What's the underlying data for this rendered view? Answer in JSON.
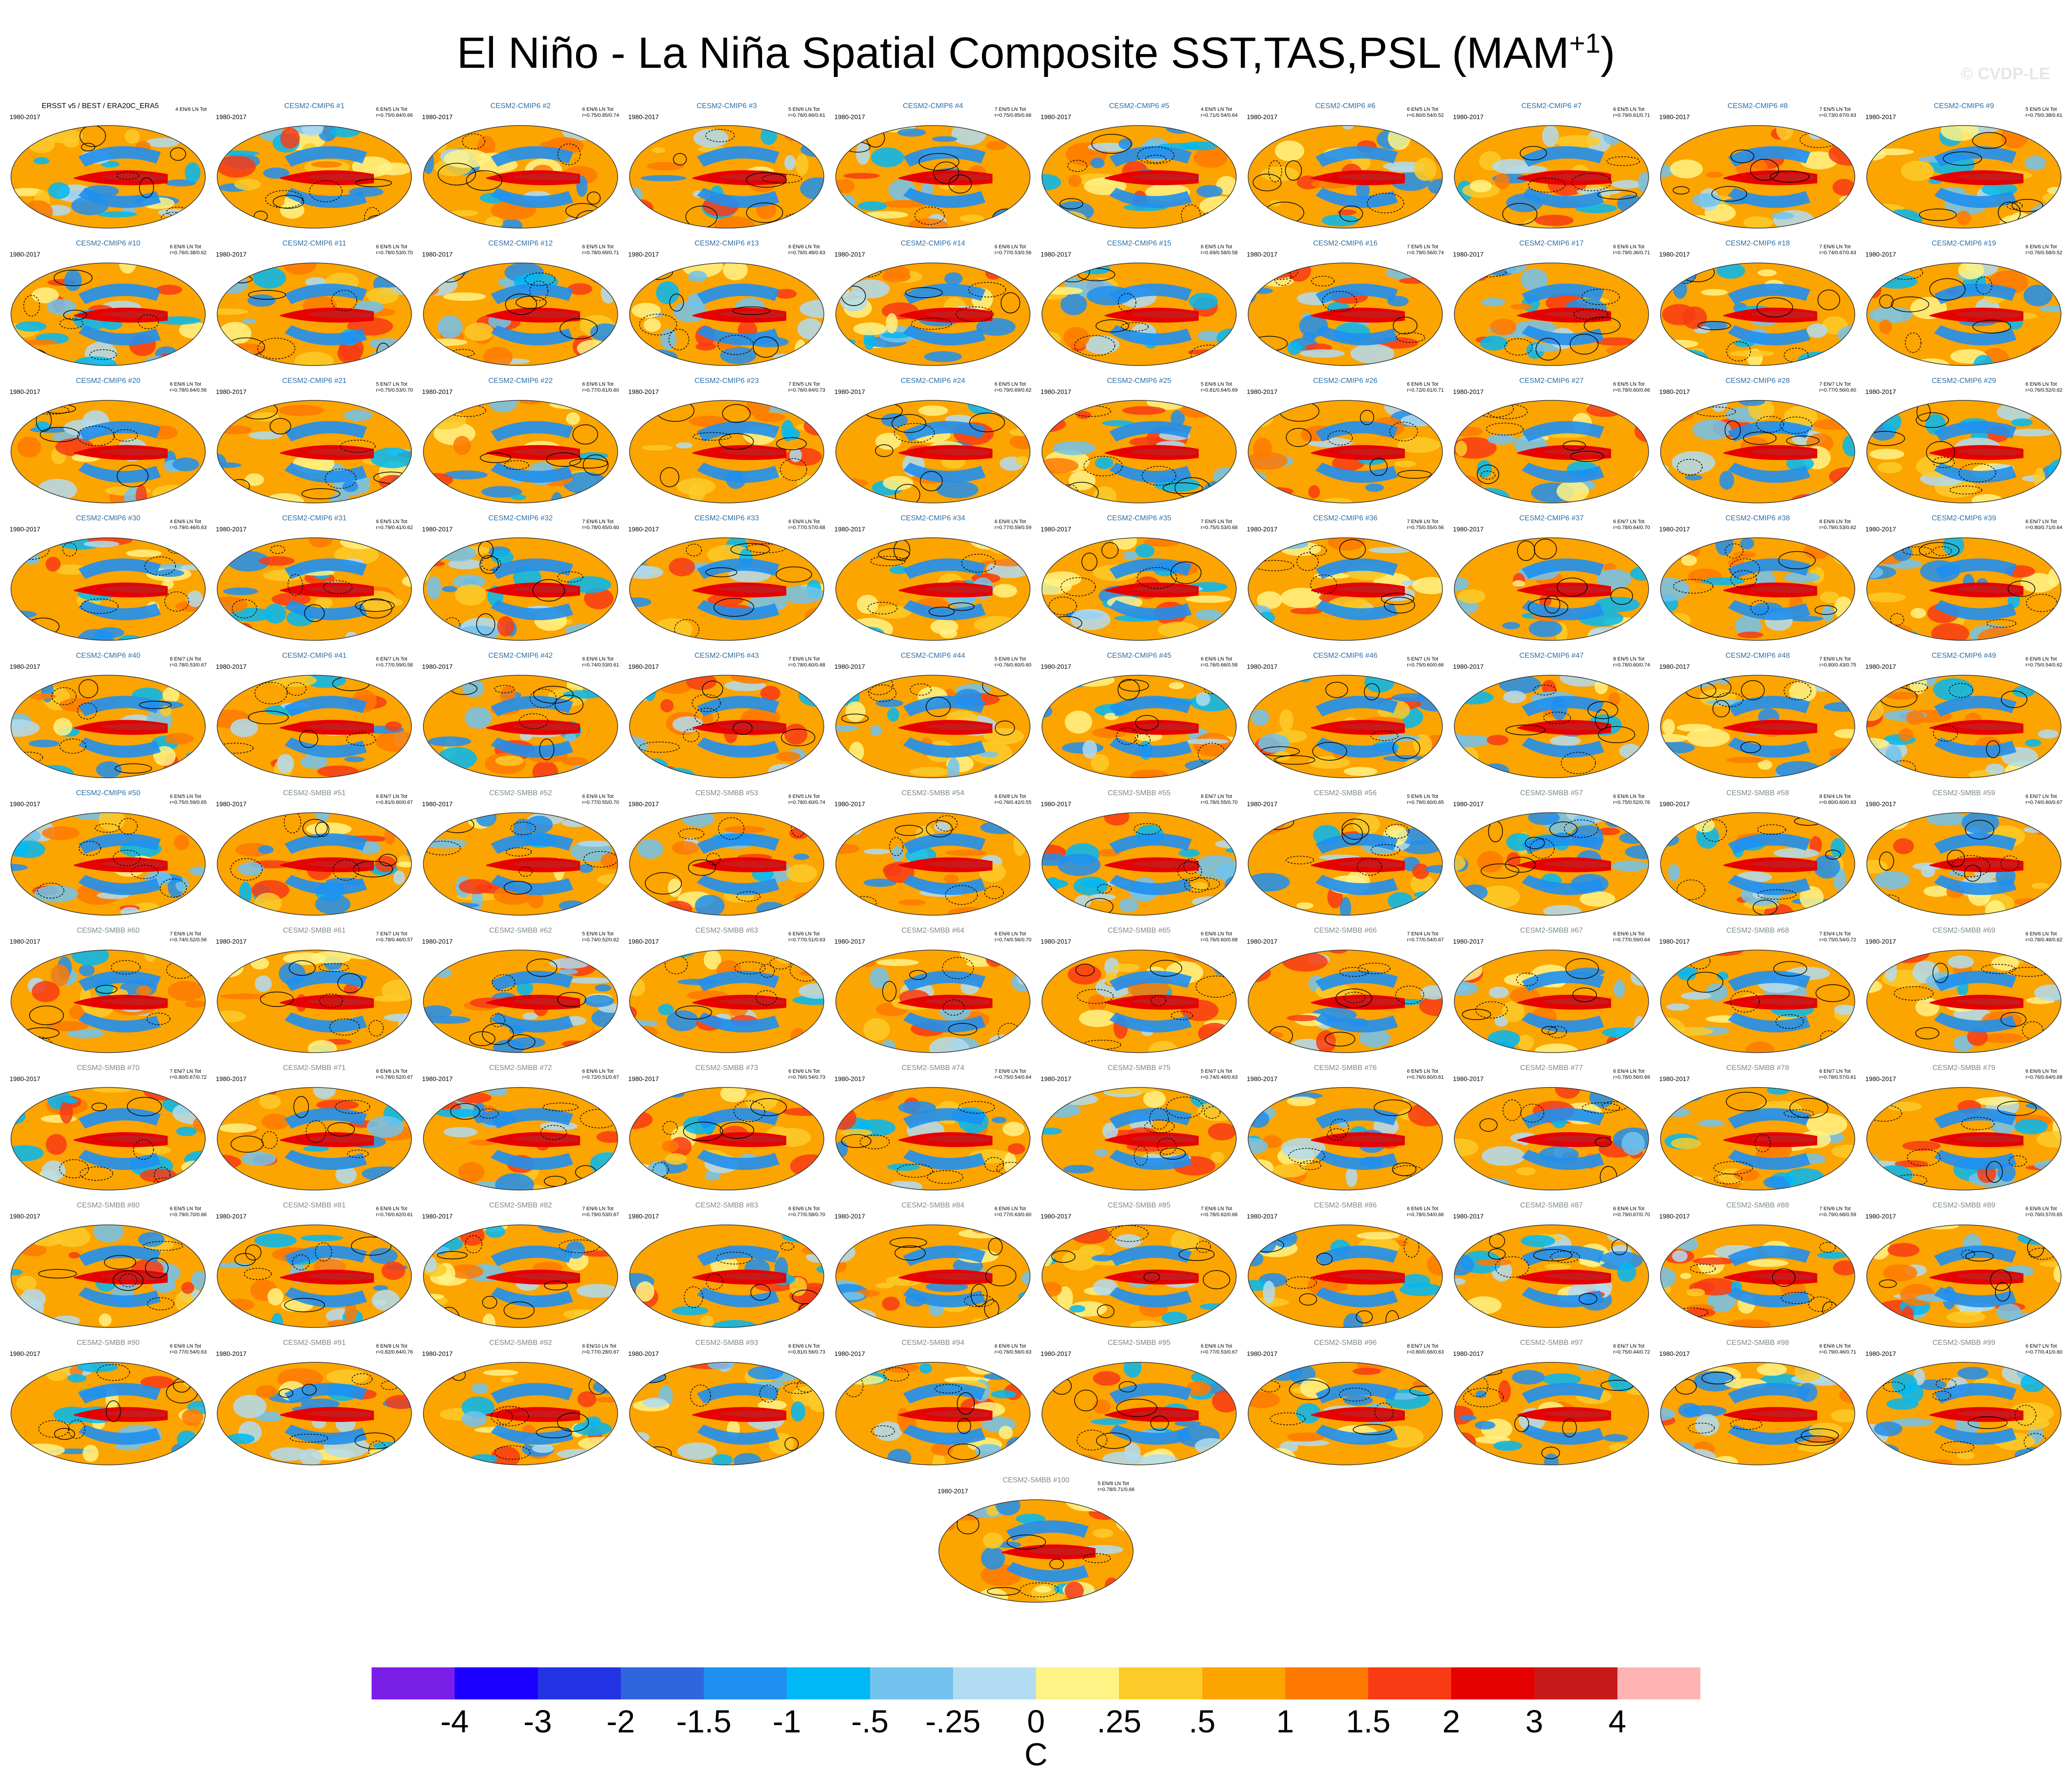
{
  "title": "El Niño - La Niña Spatial Composite SST,TAS,PSL (MAM",
  "title_superscript": "+1",
  "title_close": ")",
  "watermark": "© CVDP-LE",
  "panels": [
    {
      "name": "ERSST v5 / BEST / ERA20C_ERA5",
      "period": "1980-2017",
      "stats": "4 EN/6 LN Tot"
    },
    {
      "name": "CESM2-CMIP6 #1",
      "period": "1980-2017",
      "stats": "6 EN/5 LN Tot\nr=0.75/0.84/0.66"
    },
    {
      "name": "CESM2-CMIP6 #2",
      "period": "1980-2017",
      "stats": "6 EN/6 LN Tot\nr=0.75/0.85/0.74"
    },
    {
      "name": "CESM2-CMIP6 #3",
      "period": "1980-2017",
      "stats": "5 EN/6 LN Tot\nr=0.76/0.66/0.61"
    },
    {
      "name": "CESM2-CMIP6 #4",
      "period": "1980-2017",
      "stats": "7 EN/5 LN Tot\nr=0.75/0.85/0.66"
    },
    {
      "name": "CESM2-CMIP6 #5",
      "period": "1980-2017",
      "stats": "4 EN/5 LN Tot\nr=0.71/0.54/0.64"
    },
    {
      "name": "CESM2-CMIP6 #6",
      "period": "1980-2017",
      "stats": "6 EN/5 LN Tot\nr=0.80/0.54/0.52"
    },
    {
      "name": "CESM2-CMIP6 #7",
      "period": "1980-2017",
      "stats": "6 EN/5 LN Tot\nr=0.79/0.61/0.71"
    },
    {
      "name": "CESM2-CMIP6 #8",
      "period": "1980-2017",
      "stats": "7 EN/5 LN Tot\nr=0.73/0.67/0.63"
    },
    {
      "name": "CESM2-CMIP6 #9",
      "period": "1980-2017",
      "stats": "5 EN/5 LN Tot\nr=0.75/0.38/0.61"
    },
    {
      "name": "CESM2-CMIP6 #10",
      "period": "1980-2017",
      "stats": "6 EN/6 LN Tot\nr=0.76/0.38/0.62"
    },
    {
      "name": "CESM2-CMIP6 #11",
      "period": "1980-2017",
      "stats": "6 EN/5 LN Tot\nr=0.78/0.53/0.70"
    },
    {
      "name": "CESM2-CMIP6 #12",
      "period": "1980-2017",
      "stats": "6 EN/5 LN Tot\nr=0.78/0.69/0.71"
    },
    {
      "name": "CESM2-CMIP6 #13",
      "period": "1980-2017",
      "stats": "6 EN/6 LN Tot\nr=0.76/0.48/0.63"
    },
    {
      "name": "CESM2-CMIP6 #14",
      "period": "1980-2017",
      "stats": "6 EN/6 LN Tot\nr=0.77/0.53/0.56"
    },
    {
      "name": "CESM2-CMIP6 #15",
      "period": "1980-2017",
      "stats": "6 EN/5 LN Tot\nr=0.69/0.58/0.58"
    },
    {
      "name": "CESM2-CMIP6 #16",
      "period": "1980-2017",
      "stats": "7 EN/5 LN Tot\nr=0.79/0.56/0.74"
    },
    {
      "name": "CESM2-CMIP6 #17",
      "period": "1980-2017",
      "stats": "6 EN/6 LN Tot\nr=0.79/0.36/0.71"
    },
    {
      "name": "CESM2-CMIP6 #18",
      "period": "1980-2017",
      "stats": "7 EN/6 LN Tot\nr=0.74/0.67/0.63"
    },
    {
      "name": "CESM2-CMIP6 #19",
      "period": "1980-2017",
      "stats": "6 EN/6 LN Tot\nr=0.76/0.58/0.52"
    },
    {
      "name": "CESM2-CMIP6 #20",
      "period": "1980-2017",
      "stats": "6 EN/6 LN Tot\nr=0.78/0.64/0.56"
    },
    {
      "name": "CESM2-CMIP6 #21",
      "period": "1980-2017",
      "stats": "5 EN/7 LN Tot\nr=0.75/0.53/0.70"
    },
    {
      "name": "CESM2-CMIP6 #22",
      "period": "1980-2017",
      "stats": "6 EN/6 LN Tot\nr=0.77/0.61/0.60"
    },
    {
      "name": "CESM2-CMIP6 #23",
      "period": "1980-2017",
      "stats": "7 EN/5 LN Tot\nr=0.76/0.64/0.73"
    },
    {
      "name": "CESM2-CMIP6 #24",
      "period": "1980-2017",
      "stats": "6 EN/5 LN Tot\nr=0.79/0.69/0.62"
    },
    {
      "name": "CESM2-CMIP6 #25",
      "period": "1980-2017",
      "stats": "5 EN/6 LN Tot\nr=0.81/0.64/0.69"
    },
    {
      "name": "CESM2-CMIP6 #26",
      "period": "1980-2017",
      "stats": "6 EN/6 LN Tot\nr=0.72/0.61/0.71"
    },
    {
      "name": "CESM2-CMIP6 #27",
      "period": "1980-2017",
      "stats": "6 EN/5 LN Tot\nr=0.78/0.60/0.66"
    },
    {
      "name": "CESM2-CMIP6 #28",
      "period": "1980-2017",
      "stats": "7 EN/7 LN Tot\nr=0.77/0.56/0.60"
    },
    {
      "name": "CESM2-CMIP6 #29",
      "period": "1980-2017",
      "stats": "6 EN/6 LN Tot\nr=0.76/0.52/0.62"
    },
    {
      "name": "CESM2-CMIP6 #30",
      "period": "1980-2017",
      "stats": "4 EN/6 LN Tot\nr=0.79/0.46/0.63"
    },
    {
      "name": "CESM2-CMIP6 #31",
      "period": "1980-2017",
      "stats": "6 EN/5 LN Tot\nr=0.79/0.41/0.62"
    },
    {
      "name": "CESM2-CMIP6 #32",
      "period": "1980-2017",
      "stats": "7 EN/6 LN Tot\nr=0.78/0.65/0.60"
    },
    {
      "name": "CESM2-CMIP6 #33",
      "period": "1980-2017",
      "stats": "6 EN/6 LN Tot\nr=0.77/0.57/0.68"
    },
    {
      "name": "CESM2-CMIP6 #34",
      "period": "1980-2017",
      "stats": "6 EN/6 LN Tot\nr=0.77/0.59/0.59"
    },
    {
      "name": "CESM2-CMIP6 #35",
      "period": "1980-2017",
      "stats": "7 EN/5 LN Tot\nr=0.75/0.53/0.68"
    },
    {
      "name": "CESM2-CMIP6 #36",
      "period": "1980-2017",
      "stats": "7 EN/6 LN Tot\nr=0.75/0.55/0.56"
    },
    {
      "name": "CESM2-CMIP6 #37",
      "period": "1980-2017",
      "stats": "6 EN/7 LN Tot\nr=0.78/0.64/0.70"
    },
    {
      "name": "CESM2-CMIP6 #38",
      "period": "1980-2017",
      "stats": "8 EN/6 LN Tot\nr=0.79/0.53/0.62"
    },
    {
      "name": "CESM2-CMIP6 #39",
      "period": "1980-2017",
      "stats": "6 EN/7 LN Tot\nr=0.80/0.71/0.64"
    },
    {
      "name": "CESM2-CMIP6 #40",
      "period": "1980-2017",
      "stats": "8 EN/7 LN Tot\nr=0.78/0.53/0.67"
    },
    {
      "name": "CESM2-CMIP6 #41",
      "period": "1980-2017",
      "stats": "6 EN/7 LN Tot\nr=0.77/0.59/0.58"
    },
    {
      "name": "CESM2-CMIP6 #42",
      "period": "1980-2017",
      "stats": "6 EN/6 LN Tot\nr=0.74/0.53/0.61"
    },
    {
      "name": "CESM2-CMIP6 #43",
      "period": "1980-2017",
      "stats": "7 EN/6 LN Tot\nr=0.78/0.60/0.68"
    },
    {
      "name": "CESM2-CMIP6 #44",
      "period": "1980-2017",
      "stats": "5 EN/6 LN Tot\nr=0.76/0.60/0.60"
    },
    {
      "name": "CESM2-CMIP6 #45",
      "period": "1980-2017",
      "stats": "6 EN/6 LN Tot\nr=0.76/0.66/0.58"
    },
    {
      "name": "CESM2-CMIP6 #46",
      "period": "1980-2017",
      "stats": "5 EN/7 LN Tot\nr=0.75/0.60/0.66"
    },
    {
      "name": "CESM2-CMIP6 #47",
      "period": "1980-2017",
      "stats": "8 EN/5 LN Tot\nr=0.78/0.60/0.74"
    },
    {
      "name": "CESM2-CMIP6 #48",
      "period": "1980-2017",
      "stats": "7 EN/6 LN Tot\nr=0.80/0.43/0.75"
    },
    {
      "name": "CESM2-CMIP6 #49",
      "period": "1980-2017",
      "stats": "6 EN/6 LN Tot\nr=0.75/0.54/0.62"
    },
    {
      "name": "CESM2-CMIP6 #50",
      "period": "1980-2017",
      "stats": "6 EN/5 LN Tot\nr=0.75/0.59/0.65"
    },
    {
      "name": "CESM2-SMBB #51",
      "period": "1980-2017",
      "stats": "6 EN/7 LN Tot\nr=0.81/0.60/0.67"
    },
    {
      "name": "CESM2-SMBB #52",
      "period": "1980-2017",
      "stats": "6 EN/6 LN Tot\nr=0.77/0.55/0.70"
    },
    {
      "name": "CESM2-SMBB #53",
      "period": "1980-2017",
      "stats": "6 EN/5 LN Tot\nr=0.78/0.60/0.74"
    },
    {
      "name": "CESM2-SMBB #54",
      "period": "1980-2017",
      "stats": "6 EN/8 LN Tot\nr=0.76/0.42/0.55"
    },
    {
      "name": "CESM2-SMBB #55",
      "period": "1980-2017",
      "stats": "8 EN/7 LN Tot\nr=0.78/0.55/0.70"
    },
    {
      "name": "CESM2-SMBB #56",
      "period": "1980-2017",
      "stats": "5 EN/6 LN Tot\nr=0.79/0.60/0.65"
    },
    {
      "name": "CESM2-SMBB #57",
      "period": "1980-2017",
      "stats": "6 EN/6 LN Tot\nr=0.75/0.52/0.76"
    },
    {
      "name": "CESM2-SMBB #58",
      "period": "1980-2017",
      "stats": "8 EN/4 LN Tot\nr=0.80/0.60/0.63"
    },
    {
      "name": "CESM2-SMBB #59",
      "period": "1980-2017",
      "stats": "6 EN/7 LN Tot\nr=0.74/0.60/0.67"
    },
    {
      "name": "CESM2-SMBB #60",
      "period": "1980-2017",
      "stats": "7 EN/6 LN Tot\nr=0.74/0.52/0.56"
    },
    {
      "name": "CESM2-SMBB #61",
      "period": "1980-2017",
      "stats": "7 EN/7 LN Tot\nr=0.78/0.46/0.57"
    },
    {
      "name": "CESM2-SMBB #62",
      "period": "1980-2017",
      "stats": "5 EN/6 LN Tot\nr=0.74/0.52/0.62"
    },
    {
      "name": "CESM2-SMBB #63",
      "period": "1980-2017",
      "stats": "6 EN/6 LN Tot\nr=0.77/0.51/0.63"
    },
    {
      "name": "CESM2-SMBB #64",
      "period": "1980-2017",
      "stats": "6 EN/6 LN Tot\nr=0.74/0.56/0.70"
    },
    {
      "name": "CESM2-SMBB #65",
      "period": "1980-2017",
      "stats": "6 EN/6 LN Tot\nr=0.76/0.60/0.68"
    },
    {
      "name": "CESM2-SMBB #66",
      "period": "1980-2017",
      "stats": "7 EN/4 LN Tot\nr=0.77/0.54/0.67"
    },
    {
      "name": "CESM2-SMBB #67",
      "period": "1980-2017",
      "stats": "6 EN/6 LN Tot\nr=0.77/0.59/0.64"
    },
    {
      "name": "CESM2-SMBB #68",
      "period": "1980-2017",
      "stats": "7 EN/4 LN Tot\nr=0.75/0.54/0.72"
    },
    {
      "name": "CESM2-SMBB #69",
      "period": "1980-2017",
      "stats": "6 EN/6 LN Tot\nr=0.78/0.48/0.62"
    },
    {
      "name": "CESM2-SMBB #70",
      "period": "1980-2017",
      "stats": "7 EN/7 LN Tot\nr=0.80/0.67/0.72"
    },
    {
      "name": "CESM2-SMBB #71",
      "period": "1980-2017",
      "stats": "6 EN/6 LN Tot\nr=0.78/0.52/0.67"
    },
    {
      "name": "CESM2-SMBB #72",
      "period": "1980-2017",
      "stats": "6 EN/6 LN Tot\nr=0.72/0.51/0.67"
    },
    {
      "name": "CESM2-SMBB #73",
      "period": "1980-2017",
      "stats": "6 EN/6 LN Tot\nr=0.76/0.54/0.73"
    },
    {
      "name": "CESM2-SMBB #74",
      "period": "1980-2017",
      "stats": "7 EN/6 LN Tot\nr=0.75/0.54/0.64"
    },
    {
      "name": "CESM2-SMBB #75",
      "period": "1980-2017",
      "stats": "5 EN/7 LN Tot\nr=0.74/0.46/0.63"
    },
    {
      "name": "CESM2-SMBB #76",
      "period": "1980-2017",
      "stats": "6 EN/5 LN Tot\nr=0.76/0.60/0.61"
    },
    {
      "name": "CESM2-SMBB #77",
      "period": "1980-2017",
      "stats": "6 EN/4 LN Tot\nr=0.78/0.56/0.69"
    },
    {
      "name": "CESM2-SMBB #78",
      "period": "1980-2017",
      "stats": "6 EN/7 LN Tot\nr=0.78/0.57/0.61"
    },
    {
      "name": "CESM2-SMBB #79",
      "period": "1980-2017",
      "stats": "6 EN/6 LN Tot\nr=0.76/0.64/0.68"
    },
    {
      "name": "CESM2-SMBB #80",
      "period": "1980-2017",
      "stats": "6 EN/5 LN Tot\nr=0.79/0.70/0.66"
    },
    {
      "name": "CESM2-SMBB #81",
      "period": "1980-2017",
      "stats": "6 EN/6 LN Tot\nr=0.76/0.62/0.61"
    },
    {
      "name": "CESM2-SMBB #82",
      "period": "1980-2017",
      "stats": "7 EN/6 LN Tot\nr=0.79/0.53/0.67"
    },
    {
      "name": "CESM2-SMBB #83",
      "period": "1980-2017",
      "stats": "6 EN/6 LN Tot\nr=0.77/0.58/0.70"
    },
    {
      "name": "CESM2-SMBB #84",
      "period": "1980-2017",
      "stats": "6 EN/6 LN Tot\nr=0.77/0.63/0.60"
    },
    {
      "name": "CESM2-SMBB #85",
      "period": "1980-2017",
      "stats": "7 EN/6 LN Tot\nr=0.78/0.62/0.66"
    },
    {
      "name": "CESM2-SMBB #86",
      "period": "1980-2017",
      "stats": "6 EN/6 LN Tot\nr=0.78/0.54/0.66"
    },
    {
      "name": "CESM2-SMBB #87",
      "period": "1980-2017",
      "stats": "6 EN/6 LN Tot\nr=0.79/0.67/0.70"
    },
    {
      "name": "CESM2-SMBB #88",
      "period": "1980-2017",
      "stats": "7 EN/6 LN Tot\nr=0.79/0.68/0.59"
    },
    {
      "name": "CESM2-SMBB #89",
      "period": "1980-2017",
      "stats": "6 EN/6 LN Tot\nr=0.76/0.57/0.65"
    },
    {
      "name": "CESM2-SMBB #90",
      "period": "1980-2017",
      "stats": "6 EN/6 LN Tot\nr=0.77/0.54/0.63"
    },
    {
      "name": "CESM2-SMBB #91",
      "period": "1980-2017",
      "stats": "8 EN/8 LN Tot\nr=0.82/0.64/0.76"
    },
    {
      "name": "CESM2-SMBB #92",
      "period": "1980-2017",
      "stats": "6 EN/10 LN Tot\nr=0.77/0.28/0.67"
    },
    {
      "name": "CESM2-SMBB #93",
      "period": "1980-2017",
      "stats": "6 EN/6 LN Tot\nr=0.81/0.56/0.73"
    },
    {
      "name": "CESM2-SMBB #94",
      "period": "1980-2017",
      "stats": "6 EN/6 LN Tot\nr=0.76/0.56/0.63"
    },
    {
      "name": "CESM2-SMBB #95",
      "period": "1980-2017",
      "stats": "6 EN/6 LN Tot\nr=0.77/0.53/0.67"
    },
    {
      "name": "CESM2-SMBB #96",
      "period": "1980-2017",
      "stats": "8 EN/7 LN Tot\nr=0.80/0.66/0.63"
    },
    {
      "name": "CESM2-SMBB #97",
      "period": "1980-2017",
      "stats": "6 EN/7 LN Tot\nr=0.75/0.44/0.72"
    },
    {
      "name": "CESM2-SMBB #98",
      "period": "1980-2017",
      "stats": "6 EN/6 LN Tot\nr=0.79/0.46/0.71"
    },
    {
      "name": "CESM2-SMBB #99",
      "period": "1980-2017",
      "stats": "6 EN/7 LN Tot\nr=0.77/0.41/0.60"
    },
    {
      "name": "CESM2-SMBB #100",
      "period": "1980-2017",
      "stats": "5 EN/8 LN Tot\nr=0.78/0.71/0.66"
    }
  ],
  "colorbar": {
    "units": "C",
    "labels": [
      "-4",
      "-3",
      "-2",
      "-1.5",
      "-1",
      "-.5",
      "-.25",
      "0",
      ".25",
      ".5",
      "1",
      "1.5",
      "2",
      "3",
      "4"
    ],
    "colors": [
      "#7a1fe8",
      "#1c00ff",
      "#2233e4",
      "#2f66df",
      "#1f8ff0",
      "#00b8f5",
      "#72c3ee",
      "#b2dcf1",
      "#fff385",
      "#fccb29",
      "#fca400",
      "#fe7a00",
      "#f83b14",
      "#e60000",
      "#c81a1a",
      "#ffb4b4"
    ]
  }
}
